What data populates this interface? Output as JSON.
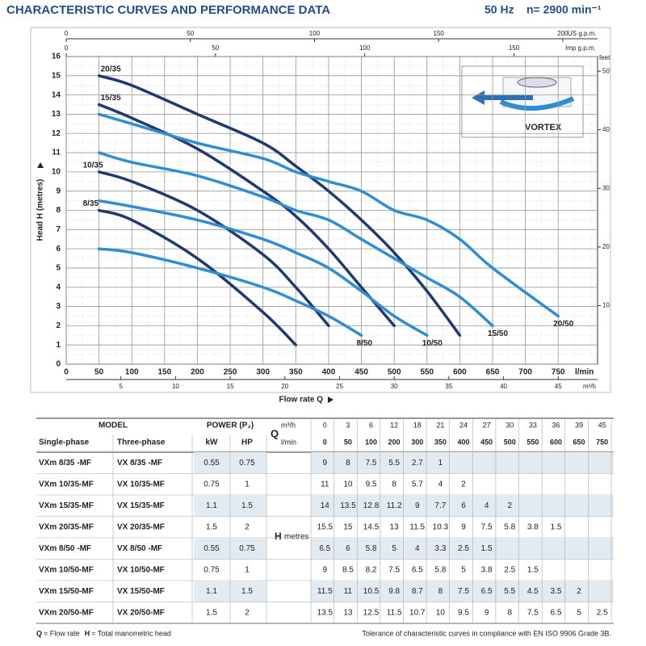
{
  "header": {
    "title": "CHARACTERISTIC CURVES AND PERFORMANCE DATA",
    "frequency": "50 Hz",
    "speed": "n= 2900 min⁻¹"
  },
  "chart_data": {
    "type": "line",
    "x_label": "Flow rate Q",
    "y_label": "Head H (metres)",
    "x_unit": "l/min",
    "xlim": [
      0,
      810
    ],
    "xticks": [
      0,
      50,
      100,
      150,
      200,
      250,
      300,
      350,
      400,
      450,
      500,
      550,
      600,
      650,
      700,
      750
    ],
    "ylim": [
      0,
      16
    ],
    "yticks": [
      0,
      1,
      2,
      3,
      4,
      5,
      6,
      7,
      8,
      9,
      10,
      11,
      12,
      13,
      14,
      15,
      16
    ],
    "grid": true,
    "us_gpm_axis": {
      "label": "US g.p.m.",
      "lim": [
        0,
        214
      ],
      "ticks": [
        0,
        50,
        100,
        150,
        200
      ]
    },
    "imp_gpm_axis": {
      "label": "Imp g.p.m.",
      "lim": [
        0,
        178
      ],
      "ticks": [
        0,
        50,
        100,
        150
      ]
    },
    "m3h_axis": {
      "label": "m³/h",
      "lim": [
        0,
        48.6
      ],
      "ticks": [
        5,
        10,
        15,
        20,
        25,
        30,
        35,
        40,
        45
      ]
    },
    "feet_axis": {
      "label": "feet",
      "lim": [
        0,
        52.5
      ],
      "ticks": [
        10,
        20,
        30,
        40,
        50
      ]
    },
    "series": [
      {
        "name": "20/35",
        "color": "#1f3a73",
        "x": [
          50,
          100,
          200,
          300,
          350,
          400,
          450,
          500,
          550,
          600
        ],
        "values": [
          15,
          14.5,
          13,
          11.5,
          10.3,
          9,
          7.5,
          5.8,
          3.8,
          1.5
        ]
      },
      {
        "name": "15/35",
        "color": "#1f3a73",
        "x": [
          50,
          100,
          200,
          300,
          350,
          400,
          450,
          500
        ],
        "values": [
          13.5,
          12.8,
          11.2,
          9,
          7.7,
          6,
          4,
          2
        ]
      },
      {
        "name": "10/35",
        "color": "#1f3a73",
        "x": [
          50,
          100,
          200,
          300,
          350,
          400
        ],
        "values": [
          10,
          9.5,
          8,
          5.7,
          4,
          2
        ]
      },
      {
        "name": "8/35",
        "color": "#1f3a73",
        "x": [
          50,
          100,
          200,
          300,
          350
        ],
        "values": [
          8,
          7.5,
          5.5,
          2.7,
          1
        ]
      },
      {
        "name": "20/50",
        "color": "#2f8ed3",
        "x": [
          50,
          100,
          200,
          300,
          350,
          400,
          450,
          500,
          550,
          600,
          650,
          750
        ],
        "values": [
          13,
          12.5,
          11.5,
          10.7,
          10,
          9.5,
          9,
          8,
          7.5,
          6.5,
          5,
          2.5
        ]
      },
      {
        "name": "15/50",
        "color": "#2f8ed3",
        "x": [
          50,
          100,
          200,
          300,
          350,
          400,
          450,
          500,
          550,
          600,
          650
        ],
        "values": [
          11,
          10.5,
          9.8,
          8.7,
          8,
          7.5,
          6.5,
          5.5,
          4.5,
          3.5,
          2
        ]
      },
      {
        "name": "10/50",
        "color": "#2f8ed3",
        "x": [
          50,
          100,
          200,
          300,
          350,
          400,
          450,
          500,
          550
        ],
        "values": [
          8.5,
          8.2,
          7.5,
          6.5,
          5.8,
          5,
          3.8,
          2.5,
          1.5
        ]
      },
      {
        "name": "8/50",
        "color": "#2f8ed3",
        "x": [
          50,
          100,
          200,
          300,
          350,
          400,
          450
        ],
        "values": [
          6,
          5.8,
          5,
          4,
          3.3,
          2.5,
          1.5
        ]
      }
    ]
  },
  "image_label": "VORTEX",
  "table": {
    "model_header": "MODEL",
    "power_header": "POWER (P₂)",
    "columns": [
      "Single-phase",
      "Three-phase",
      "kW",
      "HP"
    ],
    "q_header": "Q",
    "q_units": [
      "m³/h",
      "l/min"
    ],
    "h_header": "H",
    "h_unit": "metres",
    "q_m3h": [
      0,
      3,
      6,
      12,
      18,
      21,
      24,
      27,
      30,
      33,
      36,
      39,
      45
    ],
    "q_lmin": [
      0,
      50,
      100,
      200,
      300,
      350,
      400,
      450,
      500,
      550,
      600,
      650,
      750
    ],
    "rows": [
      {
        "single": "VXm 8/35  -MF",
        "three": "VX 8/35  -MF",
        "kw": 0.55,
        "hp": 0.75,
        "h": [
          9,
          8,
          7.5,
          5.5,
          2.7,
          1,
          null,
          null,
          null,
          null,
          null,
          null,
          null
        ]
      },
      {
        "single": "VXm 10/35-MF",
        "three": "VX 10/35-MF",
        "kw": 0.75,
        "hp": 1,
        "h": [
          11,
          10,
          9.5,
          8,
          5.7,
          4,
          2,
          null,
          null,
          null,
          null,
          null,
          null
        ]
      },
      {
        "single": "VXm 15/35-MF",
        "three": "VX 15/35-MF",
        "kw": 1.1,
        "hp": 1.5,
        "h": [
          14,
          13.5,
          12.8,
          11.2,
          9,
          7.7,
          6,
          4,
          2,
          null,
          null,
          null,
          null
        ]
      },
      {
        "single": "VXm 20/35-MF",
        "three": "VX 20/35-MF",
        "kw": 1.5,
        "hp": 2,
        "h": [
          15.5,
          15,
          14.5,
          13,
          11.5,
          10.3,
          9,
          7.5,
          5.8,
          3.8,
          1.5,
          null,
          null
        ]
      },
      {
        "single": "VXm 8/50  -MF",
        "three": "VX 8/50  -MF",
        "kw": 0.55,
        "hp": 0.75,
        "h": [
          6.5,
          6,
          5.8,
          5,
          4,
          3.3,
          2.5,
          1.5,
          null,
          null,
          null,
          null,
          null
        ]
      },
      {
        "single": "VXm 10/50-MF",
        "three": "VX 10/50-MF",
        "kw": 0.75,
        "hp": 1,
        "h": [
          9,
          8.5,
          8.2,
          7.5,
          6.5,
          5.8,
          5,
          3.8,
          2.5,
          1.5,
          null,
          null,
          null
        ]
      },
      {
        "single": "VXm 15/50-MF",
        "three": "VX 15/50-MF",
        "kw": 1.1,
        "hp": 1.5,
        "h": [
          11.5,
          11,
          10.5,
          9.8,
          8.7,
          8,
          7.5,
          6.5,
          5.5,
          4.5,
          3.5,
          2,
          null
        ]
      },
      {
        "single": "VXm 20/50-MF",
        "three": "VX 20/50-MF",
        "kw": 1.5,
        "hp": 2,
        "h": [
          13.5,
          13,
          12.5,
          11.5,
          10.7,
          10,
          9.5,
          9,
          8,
          7.5,
          6.5,
          5,
          2.5
        ]
      }
    ]
  },
  "footer": {
    "legend": [
      {
        "symbol": "Q",
        "text": "= Flow rate"
      },
      {
        "symbol": "H",
        "text": "= Total manometric head"
      }
    ],
    "note": "Tolerance of characteristic curves in compliance with EN ISO 9906 Grade 3B."
  }
}
